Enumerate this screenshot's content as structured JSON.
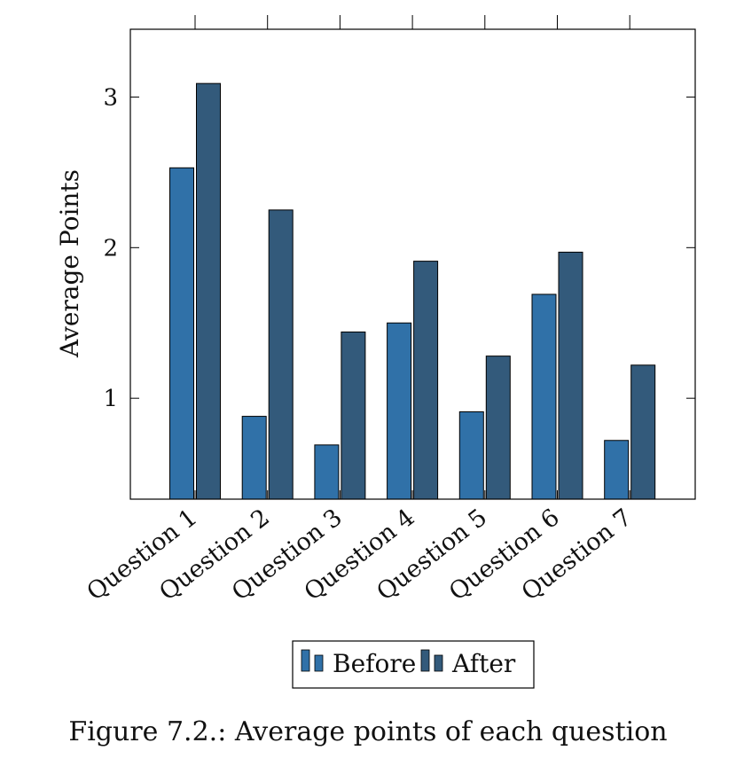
{
  "caption": "Figure 7.2.: Average points of each question",
  "chart_data": {
    "type": "bar",
    "categories": [
      "Question 1",
      "Question 2",
      "Question 3",
      "Question 4",
      "Question 5",
      "Question 6",
      "Question 7"
    ],
    "series": [
      {
        "name": "Before",
        "color": "#3071a8",
        "values": [
          2.53,
          0.88,
          0.69,
          1.5,
          0.91,
          1.69,
          0.72
        ]
      },
      {
        "name": "After",
        "color": "#335a7b",
        "values": [
          3.09,
          2.25,
          1.44,
          1.91,
          1.28,
          1.97,
          1.22
        ]
      }
    ],
    "ylabel": "Average Points",
    "xlabel": "",
    "ylim": [
      0.33,
      3.45
    ],
    "yticks": [
      1,
      2,
      3
    ],
    "legend_position": "bottom-center",
    "grid": false
  }
}
